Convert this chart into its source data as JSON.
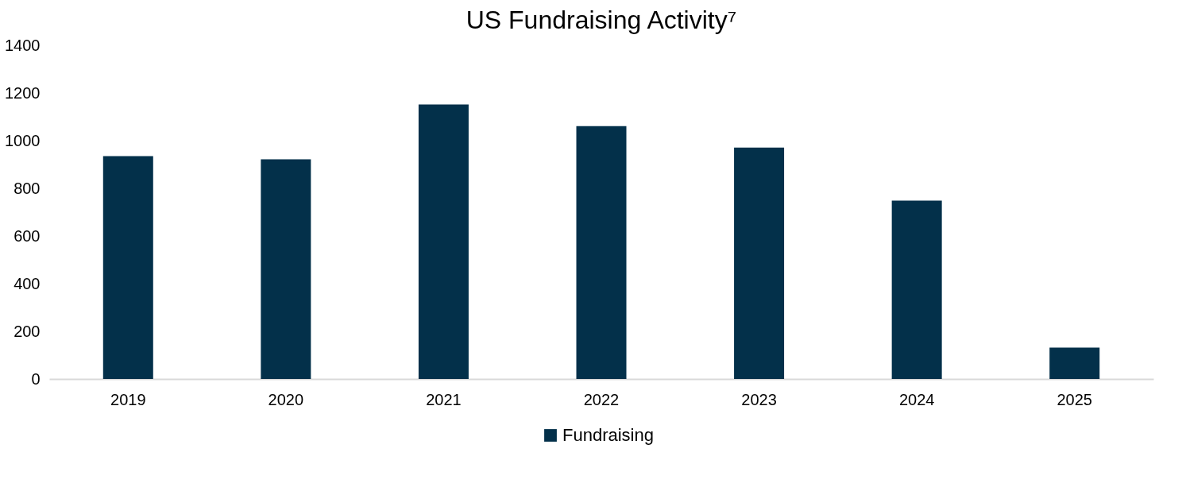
{
  "chart_data": {
    "type": "bar",
    "title": "US Fundraising Activity⁷",
    "categories": [
      "2019",
      "2020",
      "2021",
      "2022",
      "2023",
      "2024",
      "2025"
    ],
    "series": [
      {
        "name": "Fundraising",
        "color": "#03304a",
        "values": [
          935,
          922,
          1152,
          1061,
          971,
          748,
          132
        ]
      }
    ],
    "ylim": [
      0,
      1400
    ],
    "yticks": [
      0,
      200,
      400,
      600,
      800,
      1000,
      1200,
      1400
    ],
    "grid": false,
    "legend": "bottom"
  }
}
